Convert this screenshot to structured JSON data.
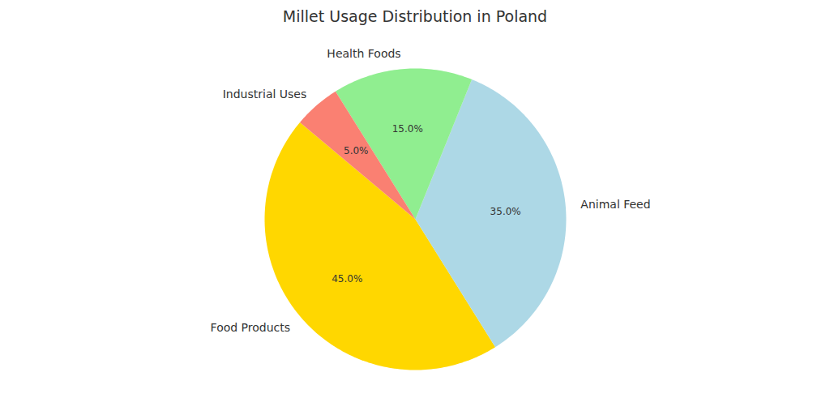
{
  "chart_data": {
    "type": "pie",
    "title": "Millet Usage Distribution in Poland",
    "categories": [
      "Food Products",
      "Animal Feed",
      "Health Foods",
      "Industrial Uses"
    ],
    "values": [
      45,
      35,
      15,
      5
    ],
    "value_labels": [
      "45.0%",
      "35.0%",
      "15.0%",
      "5.0%"
    ],
    "colors": [
      "#FFD700",
      "#ADD8E6",
      "#90EE90",
      "#FA8072"
    ],
    "data_labels": true
  }
}
